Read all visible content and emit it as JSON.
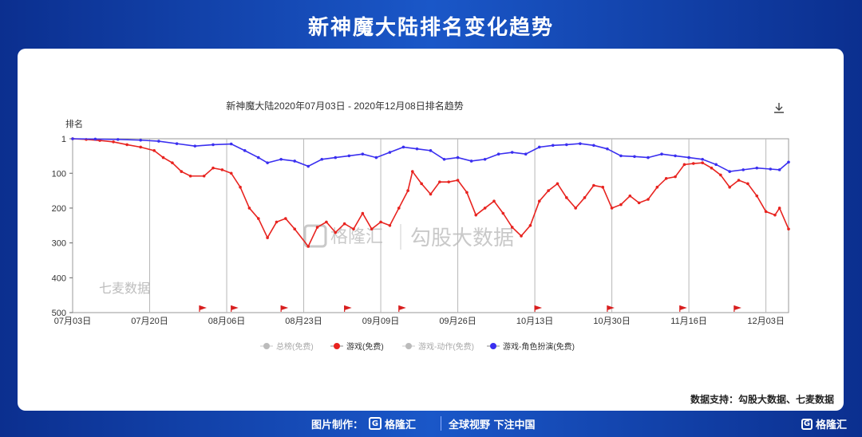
{
  "page_title": "新神魔大陆排名变化趋势",
  "data_support": "数据支持：勾股大数据、七麦数据",
  "watermarks": {
    "gelonghui": "格隆汇",
    "gougu": "勾股大数据",
    "qimai": "七麦数据"
  },
  "footer": {
    "made_by": "图片制作：",
    "logo_text": "格隆汇",
    "slogan": "全球视野 下注中国",
    "corner_logo": "格隆汇"
  },
  "icons": {
    "download": "download-icon"
  },
  "colors": {
    "red_series": "#e8231f",
    "blue_series": "#3a2ff0",
    "grey_series": "#bbbbbb",
    "flag": "#d81e1e"
  },
  "chart_data": {
    "type": "line",
    "title": "新神魔大陆2020年07月03日 - 2020年12月08日排名趋势",
    "ylabel": "排名",
    "y_reversed": true,
    "ylim": [
      1,
      500
    ],
    "y_ticks": [
      1,
      100,
      200,
      300,
      400,
      500
    ],
    "x_ticks": [
      "07月03日",
      "07月20日",
      "08月06日",
      "08月23日",
      "09月09日",
      "09月26日",
      "10月13日",
      "10月30日",
      "11月16日",
      "12月03日"
    ],
    "x_start": "2020-07-03",
    "x_end": "2020-12-08",
    "legend": [
      "总榜(免费)",
      "游戏(免费)",
      "游戏-动作(免费)",
      "游戏-角色扮演(免费)"
    ],
    "legend_active": [
      false,
      true,
      false,
      true
    ],
    "legend_position": "bottom",
    "grid": "vertical",
    "flag_dates": [
      "2020-07-31",
      "2020-08-07",
      "2020-08-18",
      "2020-09-01",
      "2020-09-13",
      "2020-10-13",
      "2020-10-29",
      "2020-11-14",
      "2020-11-26"
    ],
    "series": [
      {
        "name": "游戏(免费)",
        "color": "#e8231f",
        "points": [
          [
            "2020-07-03",
            1
          ],
          [
            "2020-07-06",
            3
          ],
          [
            "2020-07-09",
            6
          ],
          [
            "2020-07-12",
            10
          ],
          [
            "2020-07-15",
            18
          ],
          [
            "2020-07-18",
            25
          ],
          [
            "2020-07-21",
            35
          ],
          [
            "2020-07-23",
            55
          ],
          [
            "2020-07-25",
            70
          ],
          [
            "2020-07-27",
            95
          ],
          [
            "2020-07-29",
            108
          ],
          [
            "2020-08-01",
            108
          ],
          [
            "2020-08-03",
            85
          ],
          [
            "2020-08-05",
            90
          ],
          [
            "2020-08-07",
            100
          ],
          [
            "2020-08-09",
            140
          ],
          [
            "2020-08-11",
            200
          ],
          [
            "2020-08-13",
            230
          ],
          [
            "2020-08-15",
            285
          ],
          [
            "2020-08-17",
            240
          ],
          [
            "2020-08-19",
            230
          ],
          [
            "2020-08-21",
            260
          ],
          [
            "2020-08-24",
            310
          ],
          [
            "2020-08-26",
            255
          ],
          [
            "2020-08-28",
            240
          ],
          [
            "2020-08-30",
            270
          ],
          [
            "2020-09-01",
            245
          ],
          [
            "2020-09-03",
            260
          ],
          [
            "2020-09-05",
            215
          ],
          [
            "2020-09-07",
            260
          ],
          [
            "2020-09-09",
            240
          ],
          [
            "2020-09-11",
            250
          ],
          [
            "2020-09-13",
            200
          ],
          [
            "2020-09-15",
            150
          ],
          [
            "2020-09-16",
            95
          ],
          [
            "2020-09-18",
            130
          ],
          [
            "2020-09-20",
            160
          ],
          [
            "2020-09-22",
            125
          ],
          [
            "2020-09-24",
            125
          ],
          [
            "2020-09-26",
            120
          ],
          [
            "2020-09-28",
            155
          ],
          [
            "2020-09-30",
            220
          ],
          [
            "2020-10-02",
            200
          ],
          [
            "2020-10-04",
            180
          ],
          [
            "2020-10-06",
            215
          ],
          [
            "2020-10-08",
            255
          ],
          [
            "2020-10-10",
            280
          ],
          [
            "2020-10-12",
            250
          ],
          [
            "2020-10-14",
            180
          ],
          [
            "2020-10-16",
            150
          ],
          [
            "2020-10-18",
            130
          ],
          [
            "2020-10-20",
            170
          ],
          [
            "2020-10-22",
            200
          ],
          [
            "2020-10-24",
            170
          ],
          [
            "2020-10-26",
            135
          ],
          [
            "2020-10-28",
            140
          ],
          [
            "2020-10-30",
            200
          ],
          [
            "2020-11-01",
            190
          ],
          [
            "2020-11-03",
            165
          ],
          [
            "2020-11-05",
            185
          ],
          [
            "2020-11-07",
            175
          ],
          [
            "2020-11-09",
            140
          ],
          [
            "2020-11-11",
            115
          ],
          [
            "2020-11-13",
            110
          ],
          [
            "2020-11-15",
            75
          ],
          [
            "2020-11-17",
            72
          ],
          [
            "2020-11-19",
            70
          ],
          [
            "2020-11-21",
            85
          ],
          [
            "2020-11-23",
            105
          ],
          [
            "2020-11-25",
            140
          ],
          [
            "2020-11-27",
            120
          ],
          [
            "2020-11-29",
            130
          ],
          [
            "2020-12-01",
            165
          ],
          [
            "2020-12-03",
            210
          ],
          [
            "2020-12-05",
            220
          ],
          [
            "2020-12-06",
            200
          ],
          [
            "2020-12-08",
            260
          ]
        ]
      },
      {
        "name": "游戏-角色扮演(免费)",
        "color": "#3a2ff0",
        "points": [
          [
            "2020-07-03",
            1
          ],
          [
            "2020-07-08",
            2
          ],
          [
            "2020-07-13",
            3
          ],
          [
            "2020-07-18",
            5
          ],
          [
            "2020-07-22",
            8
          ],
          [
            "2020-07-26",
            15
          ],
          [
            "2020-07-30",
            22
          ],
          [
            "2020-08-03",
            18
          ],
          [
            "2020-08-07",
            16
          ],
          [
            "2020-08-10",
            35
          ],
          [
            "2020-08-13",
            55
          ],
          [
            "2020-08-15",
            70
          ],
          [
            "2020-08-18",
            60
          ],
          [
            "2020-08-21",
            65
          ],
          [
            "2020-08-24",
            80
          ],
          [
            "2020-08-27",
            60
          ],
          [
            "2020-08-30",
            55
          ],
          [
            "2020-09-02",
            50
          ],
          [
            "2020-09-05",
            45
          ],
          [
            "2020-09-08",
            55
          ],
          [
            "2020-09-11",
            40
          ],
          [
            "2020-09-14",
            25
          ],
          [
            "2020-09-17",
            30
          ],
          [
            "2020-09-20",
            35
          ],
          [
            "2020-09-23",
            60
          ],
          [
            "2020-09-26",
            55
          ],
          [
            "2020-09-29",
            65
          ],
          [
            "2020-10-02",
            60
          ],
          [
            "2020-10-05",
            45
          ],
          [
            "2020-10-08",
            40
          ],
          [
            "2020-10-11",
            45
          ],
          [
            "2020-10-14",
            25
          ],
          [
            "2020-10-17",
            20
          ],
          [
            "2020-10-20",
            18
          ],
          [
            "2020-10-23",
            15
          ],
          [
            "2020-10-26",
            20
          ],
          [
            "2020-10-29",
            30
          ],
          [
            "2020-11-01",
            50
          ],
          [
            "2020-11-04",
            52
          ],
          [
            "2020-11-07",
            55
          ],
          [
            "2020-11-10",
            45
          ],
          [
            "2020-11-13",
            50
          ],
          [
            "2020-11-16",
            55
          ],
          [
            "2020-11-19",
            60
          ],
          [
            "2020-11-22",
            75
          ],
          [
            "2020-11-25",
            95
          ],
          [
            "2020-11-28",
            90
          ],
          [
            "2020-12-01",
            85
          ],
          [
            "2020-12-04",
            88
          ],
          [
            "2020-12-06",
            90
          ],
          [
            "2020-12-08",
            68
          ]
        ]
      }
    ]
  }
}
